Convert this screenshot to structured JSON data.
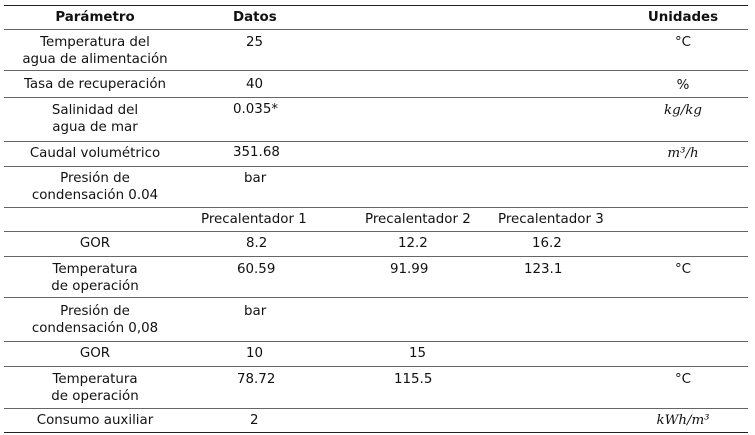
{
  "header": {
    "param": "Parámetro",
    "datos": "Datos",
    "unidades": "Unidades"
  },
  "rows": {
    "temp_agua": {
      "label1": "Temperatura del",
      "label2": "agua de alimentación",
      "value": "25",
      "unit": "°C"
    },
    "tasa": {
      "label": "Tasa de recuperación",
      "value": "40",
      "unit": "%"
    },
    "salinidad": {
      "label1": "Salinidad del",
      "label2": "agua de mar",
      "value": "0.035*",
      "unit": "kg/kg"
    },
    "caudal": {
      "label": "Caudal volumétrico",
      "value": "351.68",
      "unit": "m³/h"
    },
    "presion1": {
      "label1": "Presión de",
      "label2": "condensación 0.04",
      "value": "bar"
    },
    "precal": {
      "p1": "Precalentador 1",
      "p2": "Precalentador 2",
      "p3": "Precalentador 3"
    },
    "gor1": {
      "label": "GOR",
      "v1": "8.2",
      "v2": "12.2",
      "v3": "16.2"
    },
    "temp_op1": {
      "label1": "Temperatura",
      "label2": "de operación",
      "v1": "60.59",
      "v2": "91.99",
      "v3": "123.1",
      "unit": "°C"
    },
    "presion2": {
      "label1": "Presión de",
      "label2": "condensación 0,08",
      "value": "bar"
    },
    "gor2": {
      "label": "GOR",
      "v1": "10",
      "v2": "15"
    },
    "temp_op2": {
      "label1": "Temperatura",
      "label2": "de operación",
      "v1": "78.72",
      "v2": "115.5",
      "unit": "°C"
    },
    "consumo": {
      "label": "Consumo auxiliar",
      "value": "2",
      "unit": "kWh/m³"
    }
  }
}
